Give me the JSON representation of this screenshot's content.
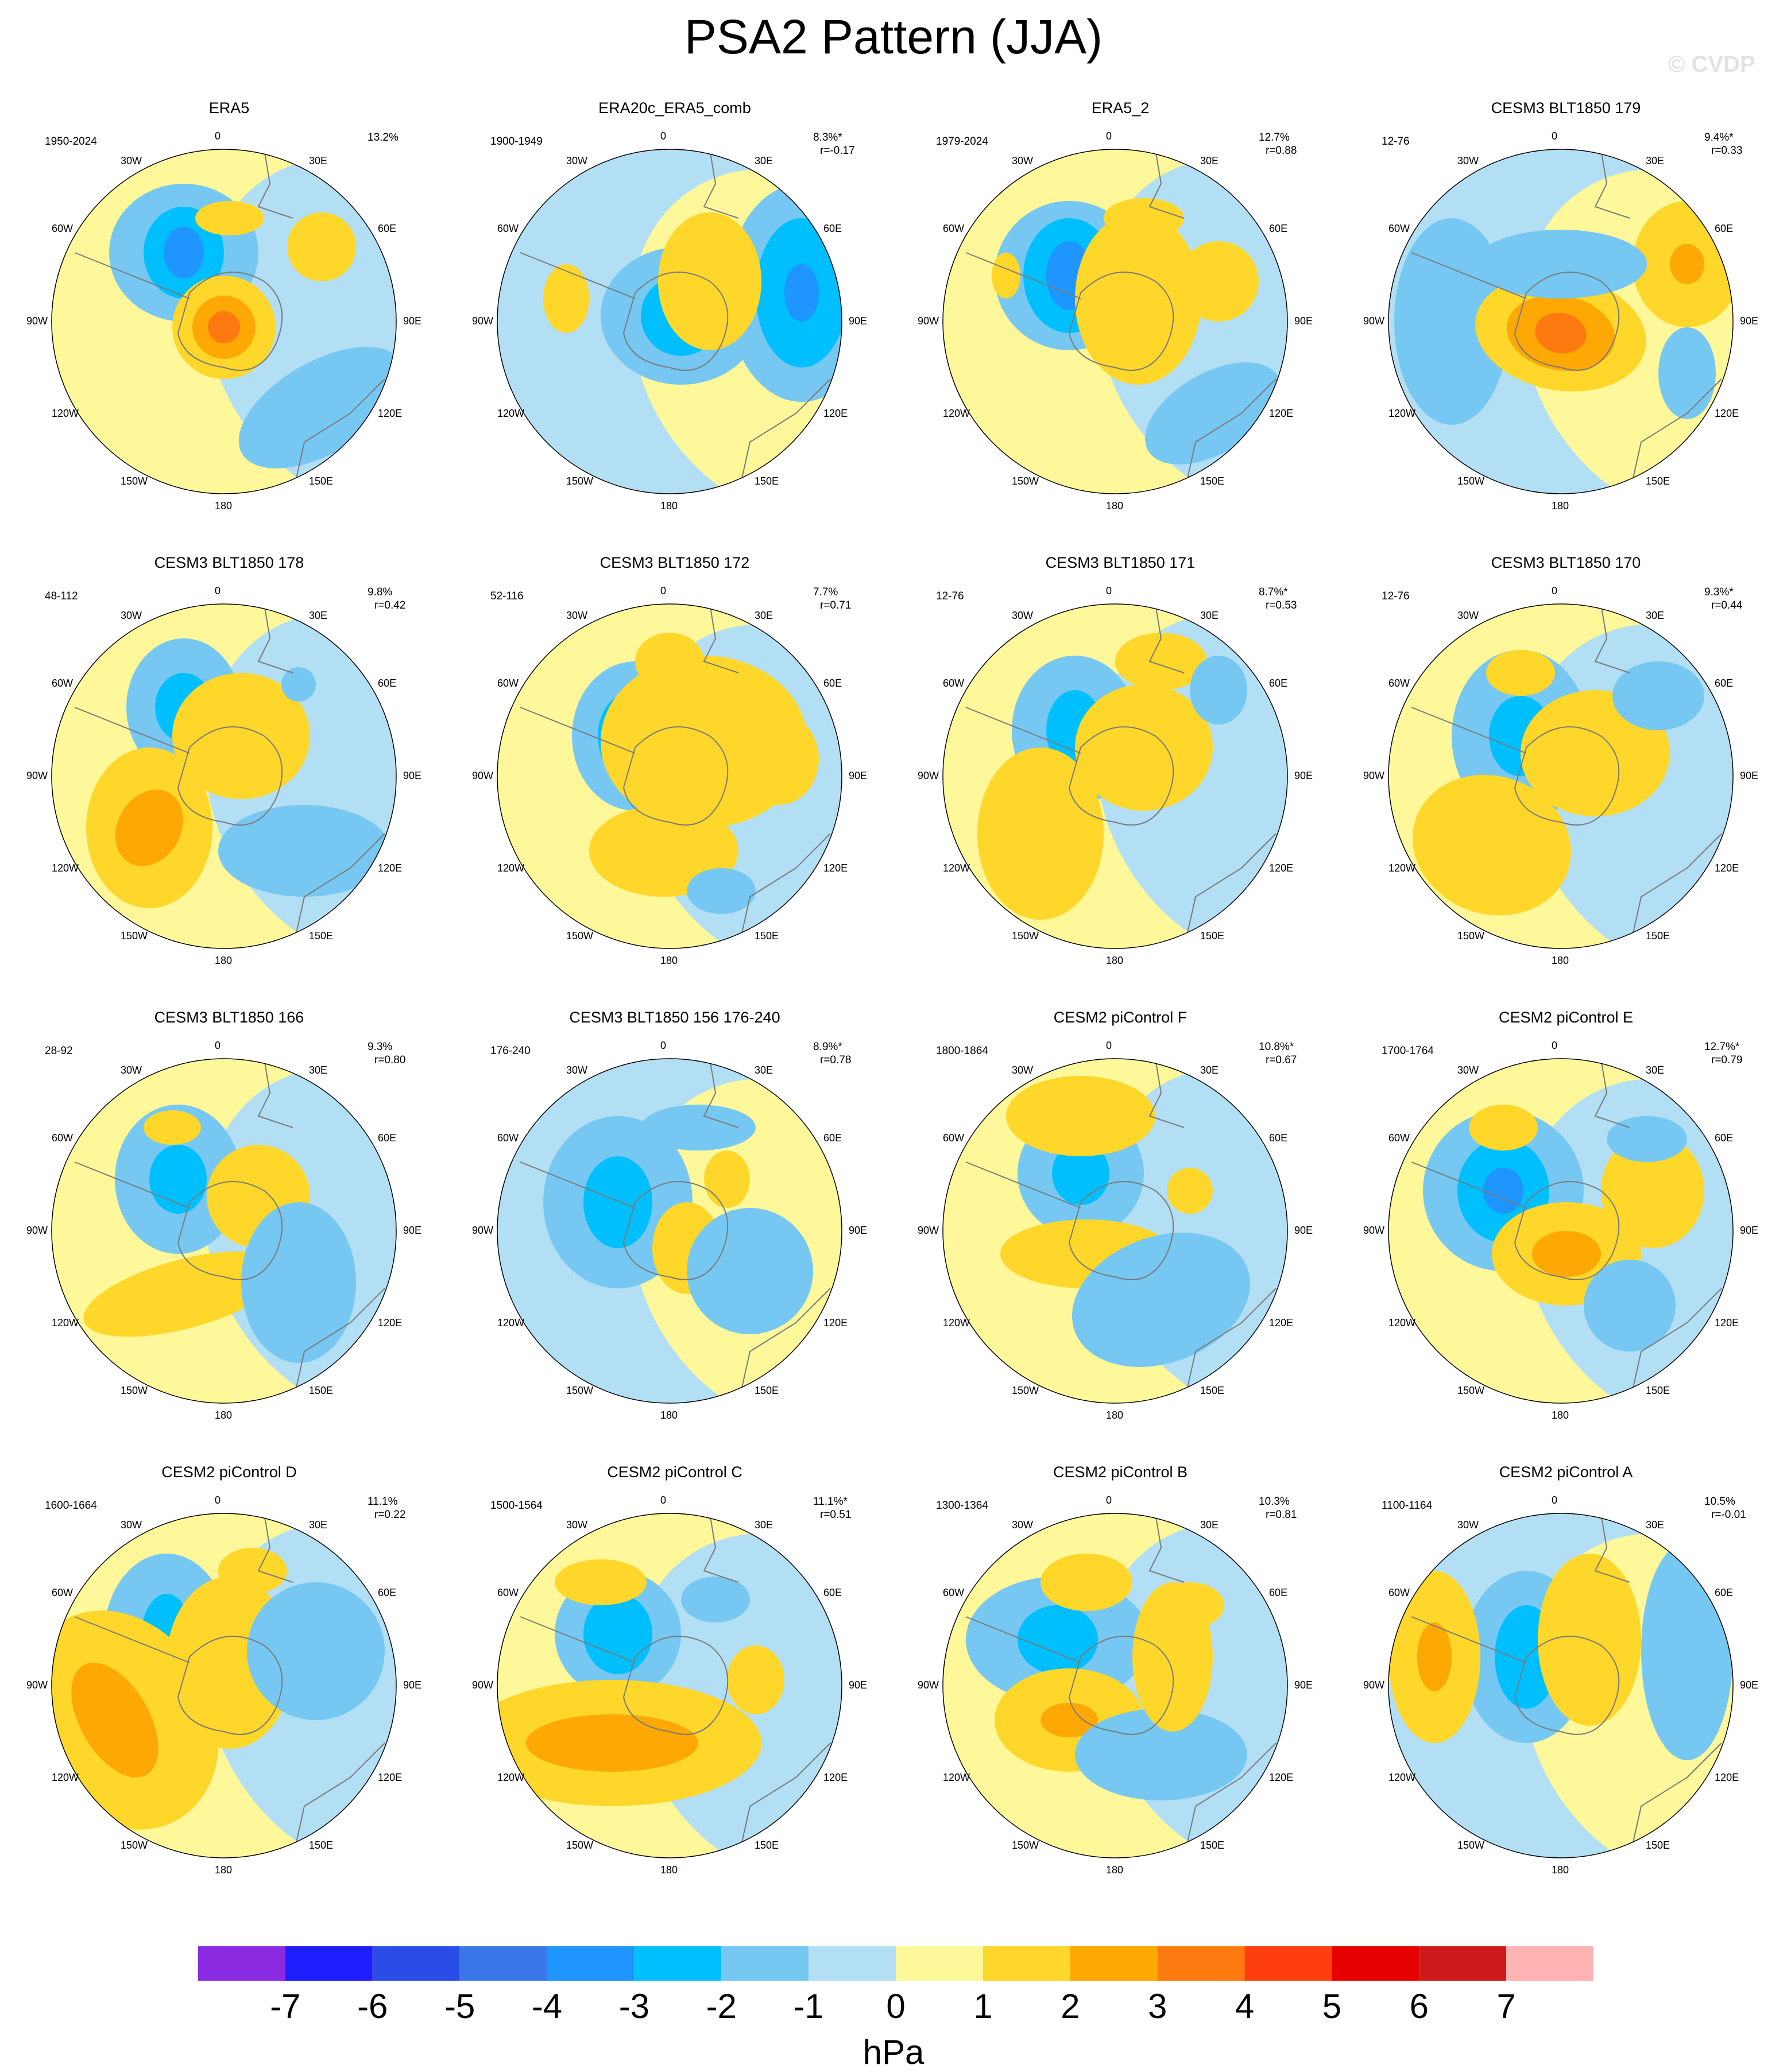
{
  "title": "PSA2 Pattern (JJA)",
  "watermark": "© CVDP",
  "longitude_labels": [
    "0",
    "30E",
    "60E",
    "90E",
    "120E",
    "150E",
    "180",
    "150W",
    "120W",
    "90W",
    "60W",
    "30W"
  ],
  "panels": [
    {
      "title": "ERA5",
      "period": "1950-2024",
      "pct": "13.2%",
      "r": ""
    },
    {
      "title": "ERA20c_ERA5_comb",
      "period": "1900-1949",
      "pct": "8.3%*",
      "r": "r=-0.17"
    },
    {
      "title": "ERA5_2",
      "period": "1979-2024",
      "pct": "12.7%",
      "r": "r=0.88"
    },
    {
      "title": "CESM3 BLT1850 179",
      "period": "12-76",
      "pct": "9.4%*",
      "r": "r=0.33"
    },
    {
      "title": "CESM3 BLT1850 178",
      "period": "48-112",
      "pct": "9.8%",
      "r": "r=0.42"
    },
    {
      "title": "CESM3 BLT1850 172",
      "period": "52-116",
      "pct": "7.7%",
      "r": "r=0.71"
    },
    {
      "title": "CESM3 BLT1850 171",
      "period": "12-76",
      "pct": "8.7%*",
      "r": "r=0.53"
    },
    {
      "title": "CESM3 BLT1850 170",
      "period": "12-76",
      "pct": "9.3%*",
      "r": "r=0.44"
    },
    {
      "title": "CESM3 BLT1850 166",
      "period": "28-92",
      "pct": "9.3%",
      "r": "r=0.80"
    },
    {
      "title": "CESM3 BLT1850 156 176-240",
      "period": "176-240",
      "pct": "8.9%*",
      "r": "r=0.78"
    },
    {
      "title": "CESM2 piControl F",
      "period": "1800-1864",
      "pct": "10.8%*",
      "r": "r=0.67"
    },
    {
      "title": "CESM2 piControl E",
      "period": "1700-1764",
      "pct": "12.7%*",
      "r": "r=0.79"
    },
    {
      "title": "CESM2 piControl D",
      "period": "1600-1664",
      "pct": "11.1%",
      "r": "r=0.22"
    },
    {
      "title": "CESM2 piControl C",
      "period": "1500-1564",
      "pct": "11.1%*",
      "r": "r=0.51"
    },
    {
      "title": "CESM2 piControl B",
      "period": "1300-1364",
      "pct": "10.3%",
      "r": "r=0.81"
    },
    {
      "title": "CESM2 piControl A",
      "period": "1100-1164",
      "pct": "10.5%",
      "r": "r=-0.01"
    }
  ],
  "colorbar": {
    "units": "hPa",
    "labels": [
      "-7",
      "-6",
      "-5",
      "-4",
      "-3",
      "-2",
      "-1",
      "0",
      "1",
      "2",
      "3",
      "4",
      "5",
      "6",
      "7"
    ],
    "colors": [
      "#8a2be2",
      "#1e1eff",
      "#2a4de8",
      "#3a78ea",
      "#1e95ff",
      "#00bfff",
      "#76c8f2",
      "#b3dff5",
      "#fff89a",
      "#fed72a",
      "#fda805",
      "#fd7a10",
      "#ff3e10",
      "#e60000",
      "#cd1b1b",
      "#ffb3b3"
    ]
  }
}
